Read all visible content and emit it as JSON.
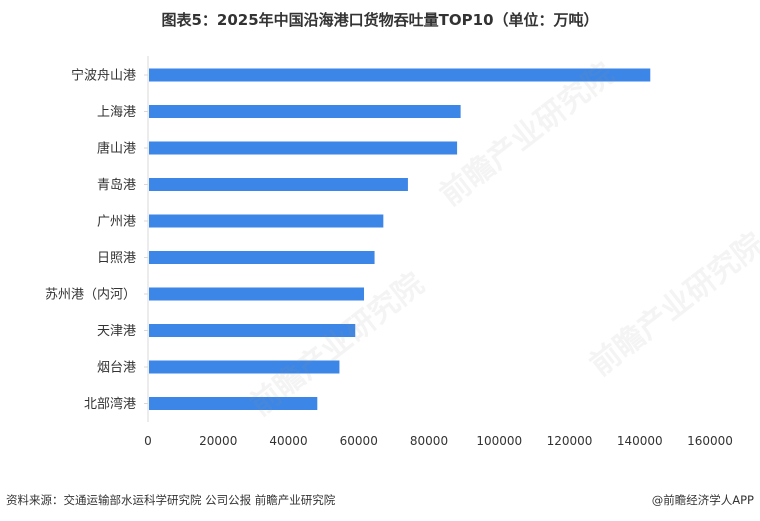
{
  "title": "图表5：2025年中国沿海港口货物吞吐量TOP10（单位：万吨）",
  "footer": {
    "source": "资料来源：交通运输部水运科学研究院 公司公报  前瞻产业研究院",
    "brand": "@前瞻经济学人APP"
  },
  "watermark_text": "前瞻产业研究院",
  "colors": {
    "bar": "#3b86e6",
    "axis": "#d9d9d9",
    "text": "#333333"
  },
  "chart_data": {
    "type": "bar",
    "orientation": "horizontal",
    "categories": [
      "宁波舟山港",
      "上海港",
      "唐山港",
      "青岛港",
      "广州港",
      "日照港",
      "苏州港（内河）",
      "天津港",
      "烟台港",
      "北部湾港"
    ],
    "values": [
      143000,
      89000,
      88000,
      74000,
      67000,
      64500,
      61500,
      59000,
      54500,
      48200
    ],
    "xlim": [
      0,
      160000
    ],
    "xticks": [
      "0",
      "20000",
      "40000",
      "60000",
      "80000",
      "100000",
      "120000",
      "140000",
      "160000"
    ],
    "grid": false,
    "legend": "none"
  }
}
